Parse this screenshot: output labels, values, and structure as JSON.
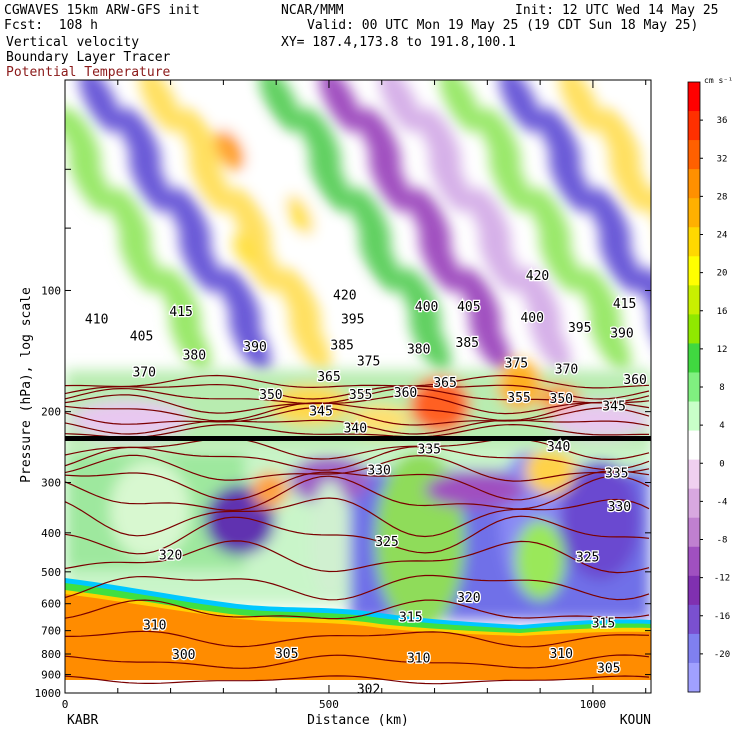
{
  "header": {
    "model": "CGWAVES 15km ARW-GFS init",
    "fcst": "Fcst:  108 h",
    "org": "NCAR/MMM",
    "init": "Init: 12 UTC Wed 14 May 25",
    "valid": "Valid: 00 UTC Mon 19 May 25 (19 CDT Sun 18 May 25)",
    "xy": "XY= 187.4,173.8 to 191.8,100.1",
    "field1": "Vertical velocity",
    "field2": "Boundary Layer Tracer",
    "field3": "Potential Temperature"
  },
  "colors": {
    "theta_contour": "#7a0000",
    "tropopause_band": "#000000"
  },
  "chart_data": {
    "type": "heatmap",
    "title": "",
    "xlabel": "Distance (km)",
    "ylabel": "Pressure (hPa), log scale",
    "x_range": [
      0,
      1110
    ],
    "y_range_hPa": [
      1000,
      30
    ],
    "y_scale": "log",
    "x_ticks": [
      0,
      500,
      1000
    ],
    "y_ticks": [
      100,
      200,
      300,
      400,
      500,
      600,
      700,
      800,
      900,
      1000
    ],
    "x_endpoints": {
      "left": "KABR",
      "right": "KOUN"
    },
    "colorbar": {
      "units": "cm s⁻¹",
      "labels": [
        36,
        32,
        28,
        24,
        20,
        16,
        12,
        8,
        4,
        0,
        -4,
        -8,
        -12,
        -16,
        -20
      ],
      "colors": [
        "#ff0000",
        "#ff3000",
        "#ff6000",
        "#ff9000",
        "#ffb000",
        "#ffd800",
        "#ffff00",
        "#c8f000",
        "#90e800",
        "#40d840",
        "#80f080",
        "#c8ffc8",
        "#ffffff",
        "#f0d0f0",
        "#d8a8e0",
        "#c080d0",
        "#a050c0",
        "#8030b0",
        "#7a50d0",
        "#8080f0",
        "#a0a0ff"
      ]
    },
    "theta_labels": [
      {
        "text": "410",
        "km": 60,
        "hPa": 118
      },
      {
        "text": "405",
        "km": 145,
        "hPa": 130
      },
      {
        "text": "415",
        "km": 220,
        "hPa": 113
      },
      {
        "text": "380",
        "km": 245,
        "hPa": 145
      },
      {
        "text": "390",
        "km": 360,
        "hPa": 138
      },
      {
        "text": "370",
        "km": 150,
        "hPa": 160
      },
      {
        "text": "420",
        "km": 530,
        "hPa": 103
      },
      {
        "text": "395",
        "km": 545,
        "hPa": 118
      },
      {
        "text": "385",
        "km": 525,
        "hPa": 137
      },
      {
        "text": "375",
        "km": 575,
        "hPa": 150
      },
      {
        "text": "365",
        "km": 500,
        "hPa": 164
      },
      {
        "text": "400",
        "km": 685,
        "hPa": 110
      },
      {
        "text": "405",
        "km": 765,
        "hPa": 110
      },
      {
        "text": "380",
        "km": 670,
        "hPa": 140
      },
      {
        "text": "385",
        "km": 762,
        "hPa": 135
      },
      {
        "text": "375",
        "km": 855,
        "hPa": 152
      },
      {
        "text": "370",
        "km": 950,
        "hPa": 157
      },
      {
        "text": "420",
        "km": 895,
        "hPa": 92
      },
      {
        "text": "400",
        "km": 885,
        "hPa": 117
      },
      {
        "text": "395",
        "km": 975,
        "hPa": 124
      },
      {
        "text": "415",
        "km": 1060,
        "hPa": 108
      },
      {
        "text": "390",
        "km": 1055,
        "hPa": 128
      },
      {
        "text": "365",
        "km": 720,
        "hPa": 170
      },
      {
        "text": "360",
        "km": 645,
        "hPa": 180
      },
      {
        "text": "355",
        "km": 560,
        "hPa": 182
      },
      {
        "text": "355",
        "km": 860,
        "hPa": 185
      },
      {
        "text": "350",
        "km": 390,
        "hPa": 182
      },
      {
        "text": "350",
        "km": 940,
        "hPa": 186
      },
      {
        "text": "345",
        "km": 485,
        "hPa": 200
      },
      {
        "text": "345",
        "km": 1040,
        "hPa": 194
      },
      {
        "text": "360",
        "km": 1080,
        "hPa": 167
      },
      {
        "text": "340",
        "km": 550,
        "hPa": 220
      },
      {
        "text": "340",
        "km": 935,
        "hPa": 245
      },
      {
        "text": "335",
        "km": 690,
        "hPa": 248
      },
      {
        "text": "335",
        "km": 1045,
        "hPa": 285
      },
      {
        "text": "330",
        "km": 595,
        "hPa": 280
      },
      {
        "text": "330",
        "km": 1050,
        "hPa": 345
      },
      {
        "text": "325",
        "km": 610,
        "hPa": 422
      },
      {
        "text": "325",
        "km": 990,
        "hPa": 460
      },
      {
        "text": "320",
        "km": 200,
        "hPa": 455
      },
      {
        "text": "320",
        "km": 765,
        "hPa": 580
      },
      {
        "text": "315",
        "km": 655,
        "hPa": 650
      },
      {
        "text": "315",
        "km": 1020,
        "hPa": 672
      },
      {
        "text": "310",
        "km": 170,
        "hPa": 680
      },
      {
        "text": "310",
        "km": 670,
        "hPa": 820
      },
      {
        "text": "310",
        "km": 940,
        "hPa": 800
      },
      {
        "text": "305",
        "km": 420,
        "hPa": 800
      },
      {
        "text": "305",
        "km": 1030,
        "hPa": 870
      },
      {
        "text": "300",
        "km": 225,
        "hPa": 805
      },
      {
        "text": "302",
        "km": 575,
        "hPa": 980
      }
    ]
  }
}
